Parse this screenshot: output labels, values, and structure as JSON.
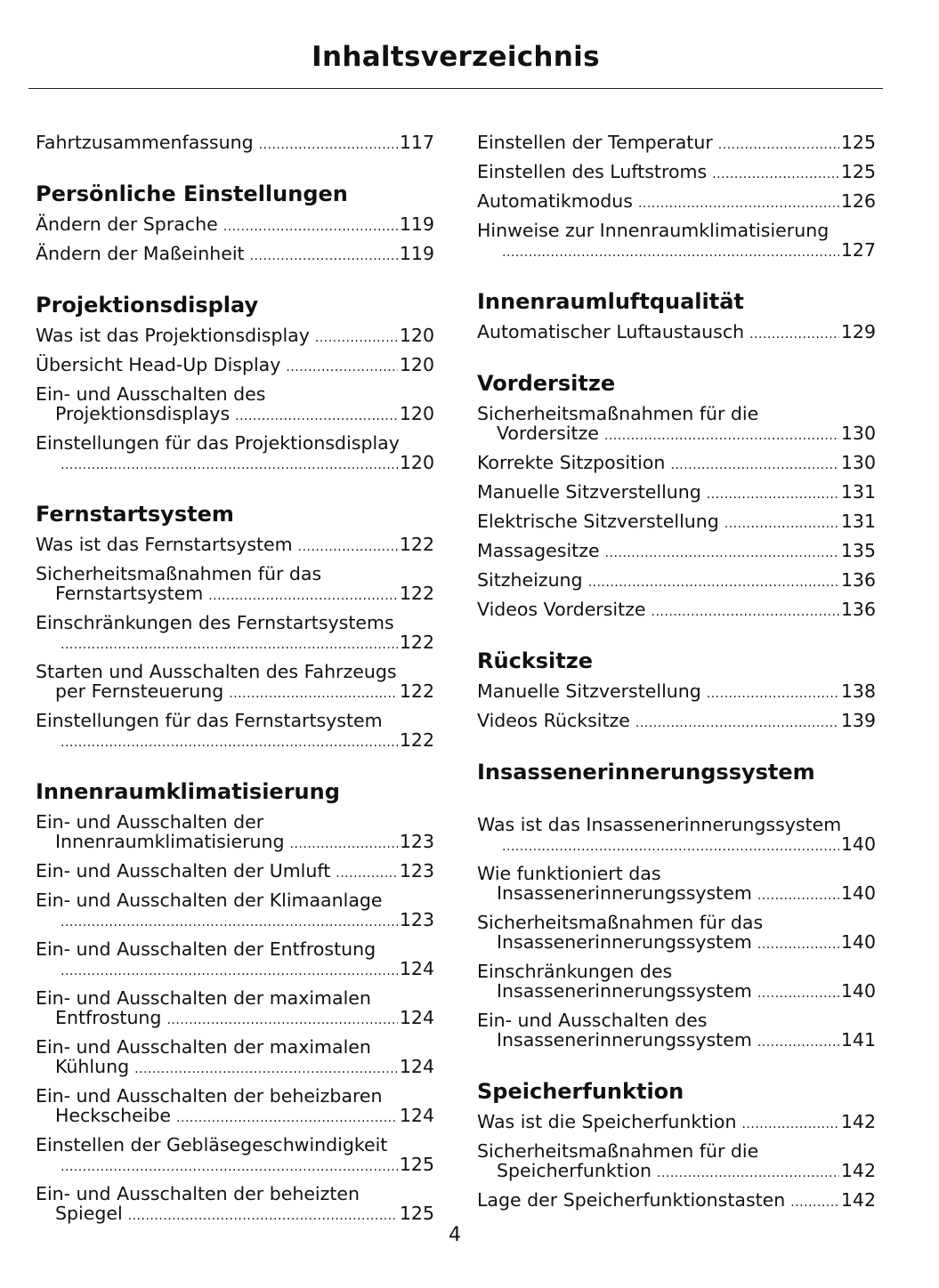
{
  "title": "Inhaltsverzeichnis",
  "page_number": "4",
  "columns": [
    [
      {
        "type": "entry",
        "lines": [
          "Fahrtzusammenfassung"
        ],
        "page": "117"
      },
      {
        "type": "heading",
        "text": "Persönliche Einstellungen"
      },
      {
        "type": "entry",
        "lines": [
          "Ändern der Sprache"
        ],
        "page": "119"
      },
      {
        "type": "entry",
        "lines": [
          "Ändern der Maßeinheit"
        ],
        "page": "119"
      },
      {
        "type": "heading",
        "text": "Projektionsdisplay"
      },
      {
        "type": "entry",
        "lines": [
          "Was ist das Projektionsdisplay"
        ],
        "page": "120"
      },
      {
        "type": "entry",
        "lines": [
          "Übersicht Head-Up Display"
        ],
        "page": "120"
      },
      {
        "type": "entry",
        "lines": [
          "Ein- und Ausschalten des",
          "Projektionsdisplays"
        ],
        "page": "120"
      },
      {
        "type": "entry",
        "lines": [
          "Einstellungen für das Projektionsdisplay",
          ""
        ],
        "page": "120"
      },
      {
        "type": "heading",
        "text": "Fernstartsystem"
      },
      {
        "type": "entry",
        "lines": [
          "Was ist das Fernstartsystem"
        ],
        "page": "122"
      },
      {
        "type": "entry",
        "lines": [
          "Sicherheitsmaßnahmen für das",
          "Fernstartsystem"
        ],
        "page": "122"
      },
      {
        "type": "entry",
        "lines": [
          "Einschränkungen des Fernstartsystems",
          ""
        ],
        "page": "122"
      },
      {
        "type": "entry",
        "lines": [
          "Starten und Ausschalten des Fahrzeugs",
          "per Fernsteuerung"
        ],
        "page": "122"
      },
      {
        "type": "entry",
        "lines": [
          "Einstellungen für das Fernstartsystem",
          ""
        ],
        "page": "122"
      },
      {
        "type": "heading",
        "text": "Innenraumklimatisierung"
      },
      {
        "type": "entry",
        "lines": [
          "Ein- und Ausschalten der",
          "Innenraumklimatisierung"
        ],
        "page": "123"
      },
      {
        "type": "entry",
        "lines": [
          "Ein- und Ausschalten der Umluft"
        ],
        "page": "123"
      },
      {
        "type": "entry",
        "lines": [
          "Ein- und Ausschalten der Klimaanlage",
          ""
        ],
        "page": "123"
      },
      {
        "type": "entry",
        "lines": [
          "Ein- und Ausschalten der Entfrostung",
          ""
        ],
        "page": "124"
      },
      {
        "type": "entry",
        "lines": [
          "Ein- und Ausschalten der maximalen",
          "Entfrostung"
        ],
        "page": "124"
      },
      {
        "type": "entry",
        "lines": [
          "Ein- und Ausschalten der maximalen",
          "Kühlung"
        ],
        "page": "124"
      },
      {
        "type": "entry",
        "lines": [
          "Ein- und Ausschalten der beheizbaren",
          "Heckscheibe"
        ],
        "page": "124"
      },
      {
        "type": "entry",
        "lines": [
          "Einstellen der Gebläsegeschwindigkeit",
          ""
        ],
        "page": "125"
      },
      {
        "type": "entry",
        "lines": [
          "Ein- und Ausschalten der beheizten",
          "Spiegel"
        ],
        "page": "125"
      }
    ],
    [
      {
        "type": "entry",
        "lines": [
          "Einstellen der Temperatur"
        ],
        "page": "125"
      },
      {
        "type": "entry",
        "lines": [
          "Einstellen des Luftstroms"
        ],
        "page": "125"
      },
      {
        "type": "entry",
        "lines": [
          "Automatikmodus"
        ],
        "page": "126"
      },
      {
        "type": "entry",
        "lines": [
          "Hinweise zur Innenraumklimatisierung",
          ""
        ],
        "page": "127"
      },
      {
        "type": "heading",
        "text": "Innenraumluftqualität"
      },
      {
        "type": "entry",
        "lines": [
          "Automatischer Luftaustausch"
        ],
        "page": "129"
      },
      {
        "type": "heading",
        "text": "Vordersitze"
      },
      {
        "type": "entry",
        "lines": [
          "Sicherheitsmaßnahmen für die",
          "Vordersitze"
        ],
        "page": "130"
      },
      {
        "type": "entry",
        "lines": [
          "Korrekte Sitzposition"
        ],
        "page": "130"
      },
      {
        "type": "entry",
        "lines": [
          "Manuelle Sitzverstellung"
        ],
        "page": "131"
      },
      {
        "type": "entry",
        "lines": [
          "Elektrische Sitzverstellung"
        ],
        "page": "131"
      },
      {
        "type": "entry",
        "lines": [
          "Massagesitze"
        ],
        "page": "135"
      },
      {
        "type": "entry",
        "lines": [
          "Sitzheizung"
        ],
        "page": "136"
      },
      {
        "type": "entry",
        "lines": [
          "Videos Vordersitze"
        ],
        "page": "136"
      },
      {
        "type": "heading",
        "text": "Rücksitze"
      },
      {
        "type": "entry",
        "lines": [
          "Manuelle Sitzverstellung"
        ],
        "page": "138"
      },
      {
        "type": "entry",
        "lines": [
          "Videos Rücksitze"
        ],
        "page": "139"
      },
      {
        "type": "heading",
        "text": "Insassenerinnerungssystem",
        "extra": true
      },
      {
        "type": "entry",
        "lines": [
          "Was ist das Insassenerinnerungssystem",
          ""
        ],
        "page": "140"
      },
      {
        "type": "entry",
        "lines": [
          "Wie funktioniert das",
          "Insassenerinnerungssystem"
        ],
        "page": "140"
      },
      {
        "type": "entry",
        "lines": [
          "Sicherheitsmaßnahmen für das",
          "Insassenerinnerungssystem"
        ],
        "page": "140"
      },
      {
        "type": "entry",
        "lines": [
          "Einschränkungen des",
          "Insassenerinnerungssystem"
        ],
        "page": "140"
      },
      {
        "type": "entry",
        "lines": [
          "Ein- und Ausschalten des",
          "Insassenerinnerungssystem"
        ],
        "page": "141"
      },
      {
        "type": "heading",
        "text": "Speicherfunktion"
      },
      {
        "type": "entry",
        "lines": [
          "Was ist die Speicherfunktion"
        ],
        "page": "142"
      },
      {
        "type": "entry",
        "lines": [
          "Sicherheitsmaßnahmen für die",
          "Speicherfunktion"
        ],
        "page": "142"
      },
      {
        "type": "entry",
        "lines": [
          "Lage der Speicherfunktionstasten"
        ],
        "page": "142"
      }
    ]
  ]
}
